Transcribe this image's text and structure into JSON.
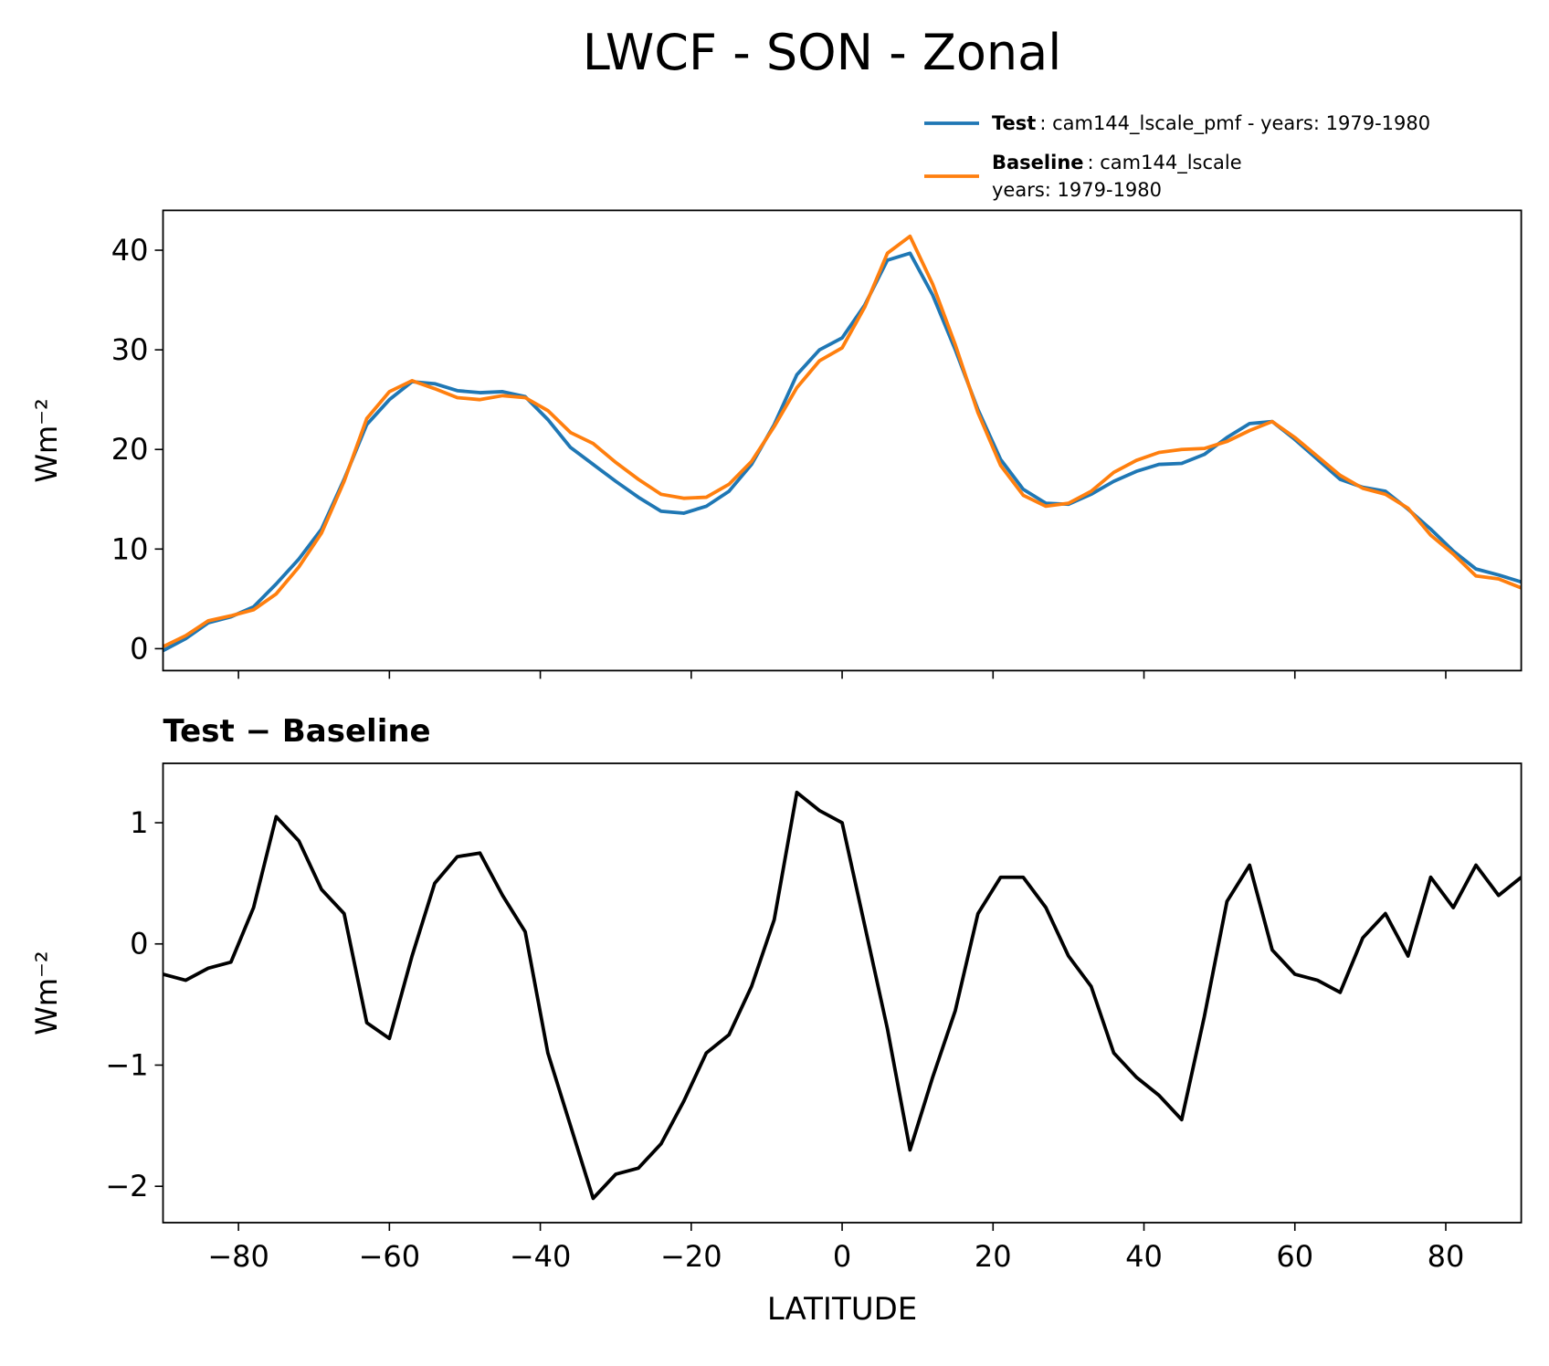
{
  "title": "LWCF - SON - Zonal",
  "chart_data": [
    {
      "type": "line",
      "ylabel": "Wm⁻²",
      "x": [
        -90,
        -87,
        -84,
        -81,
        -78,
        -75,
        -72,
        -69,
        -66,
        -63,
        -60,
        -57,
        -54,
        -51,
        -48,
        -45,
        -42,
        -39,
        -36,
        -33,
        -30,
        -27,
        -24,
        -21,
        -18,
        -15,
        -12,
        -9,
        -6,
        -3,
        0,
        3,
        6,
        9,
        12,
        15,
        18,
        21,
        24,
        27,
        30,
        33,
        36,
        39,
        42,
        45,
        48,
        51,
        54,
        57,
        60,
        63,
        66,
        69,
        72,
        75,
        78,
        81,
        84,
        87,
        90
      ],
      "series": [
        {
          "name": "Test",
          "description": [
            ": cam144_lscale_pmf - years: 1979-1980"
          ],
          "color": "#1f77b4",
          "values": [
            -0.2,
            1.0,
            2.6,
            3.2,
            4.2,
            6.5,
            9.0,
            12,
            17,
            22.5,
            25,
            26.8,
            26.6,
            25.9,
            25.7,
            25.8,
            25.3,
            23,
            20.2,
            18.5,
            16.8,
            15.2,
            13.8,
            13.6,
            14.3,
            15.8,
            18.5,
            22.5,
            27.5,
            30.0,
            31.2,
            34.5,
            39,
            39.7,
            35.5,
            30,
            24,
            19,
            16,
            14.6,
            14.5,
            15.5,
            16.8,
            17.8,
            18.5,
            18.6,
            19.5,
            21.2,
            22.6,
            22.8,
            21,
            19,
            17,
            16.2,
            15.8,
            14,
            12,
            9.8,
            8.0,
            7.4,
            6.7
          ]
        },
        {
          "name": "Baseline",
          "description": [
            ": cam144_lscale",
            "years: 1979-1980"
          ],
          "color": "#ff7f0e",
          "values": [
            0.2,
            1.3,
            2.8,
            3.3,
            3.9,
            5.5,
            8.2,
            11.6,
            16.8,
            23.1,
            25.8,
            26.9,
            26.1,
            25.2,
            25.0,
            25.4,
            25.2,
            23.9,
            21.7,
            20.6,
            18.7,
            17.0,
            15.5,
            15.1,
            15.2,
            16.5,
            18.8,
            22.3,
            26.2,
            28.9,
            30.2,
            34.3,
            39.7,
            41.4,
            36.6,
            30.5,
            23.7,
            18.4,
            15.4,
            14.3,
            14.6,
            15.8,
            17.7,
            18.9,
            19.7,
            20.0,
            20.1,
            20.8,
            21.9,
            22.8,
            21.2,
            19.3,
            17.4,
            16.1,
            15.5,
            14.1,
            11.4,
            9.5,
            7.3,
            7.0,
            6.1
          ]
        }
      ],
      "xlim": [
        -90,
        90
      ],
      "xticks": [
        -80,
        -60,
        -40,
        -20,
        0,
        20,
        40,
        60,
        80
      ],
      "ylim": [
        -2.2,
        44
      ],
      "yticks": [
        0,
        10,
        20,
        30,
        40
      ],
      "legend": "upper right"
    },
    {
      "type": "line",
      "title": "Test − Baseline",
      "xlabel": "LATITUDE",
      "ylabel": "Wm⁻²",
      "x": [
        -90,
        -87,
        -84,
        -81,
        -78,
        -75,
        -72,
        -69,
        -66,
        -63,
        -60,
        -57,
        -54,
        -51,
        -48,
        -45,
        -42,
        -39,
        -36,
        -33,
        -30,
        -27,
        -24,
        -21,
        -18,
        -15,
        -12,
        -9,
        -6,
        -3,
        0,
        3,
        6,
        9,
        12,
        15,
        18,
        21,
        24,
        27,
        30,
        33,
        36,
        39,
        42,
        45,
        48,
        51,
        54,
        57,
        60,
        63,
        66,
        69,
        72,
        75,
        78,
        81,
        84,
        87,
        90
      ],
      "series": [
        {
          "color": "#000000",
          "values": [
            -0.25,
            -0.3,
            -0.2,
            -0.15,
            0.3,
            1.05,
            0.85,
            0.45,
            0.25,
            -0.65,
            -0.78,
            -0.1,
            0.5,
            0.72,
            0.75,
            0.4,
            0.1,
            -0.9,
            -1.5,
            -2.1,
            -1.9,
            -1.85,
            -1.65,
            -1.3,
            -0.9,
            -0.75,
            -0.35,
            0.2,
            1.25,
            1.1,
            1.0,
            0.15,
            -0.7,
            -1.7,
            -1.1,
            -0.55,
            0.25,
            0.55,
            0.55,
            0.3,
            -0.1,
            -0.35,
            -0.9,
            -1.1,
            -1.25,
            -1.45,
            -0.6,
            0.35,
            0.65,
            -0.05,
            -0.25,
            -0.3,
            -0.4,
            0.05,
            0.25,
            -0.1,
            0.55,
            0.3,
            0.65,
            0.4,
            0.55
          ]
        }
      ],
      "xlim": [
        -90,
        90
      ],
      "xticks": [
        {
          "value": -80,
          "label": "−80"
        },
        {
          "value": -60,
          "label": "−60"
        },
        {
          "value": -40,
          "label": "−40"
        },
        {
          "value": -20,
          "label": "−20"
        },
        0,
        20,
        40,
        60,
        80
      ],
      "ylim": [
        -2.3,
        1.49
      ],
      "yticks": [
        {
          "value": -2,
          "label": "−2"
        },
        {
          "value": -1,
          "label": "−1"
        },
        0,
        1
      ]
    }
  ]
}
